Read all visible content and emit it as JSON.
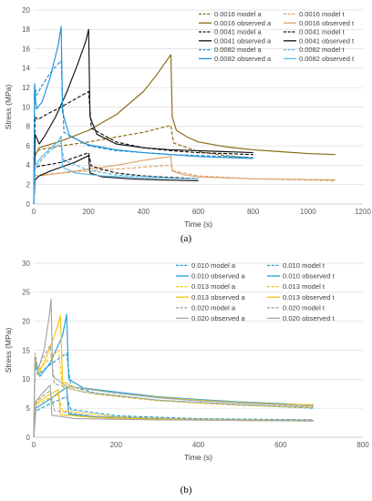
{
  "panels": [
    {
      "label": "(a)",
      "chart_data": {
        "type": "line",
        "xlabel": "Time (s)",
        "ylabel": "Stress (MPa)",
        "xlim": [
          0,
          1200
        ],
        "ylim": [
          0,
          20
        ],
        "xticks": [
          0,
          200,
          400,
          600,
          800,
          1000,
          1200
        ],
        "yticks": [
          0,
          2,
          4,
          6,
          8,
          10,
          12,
          14,
          16,
          18,
          20
        ],
        "grid": "horizontal",
        "legend_position": "top-right",
        "legend_columns": 2,
        "series": [
          {
            "name": "0.0016 model a",
            "color": "#8B6914",
            "dash": true,
            "x": [
              0,
              5,
              20,
              100,
              200,
              300,
              400,
              500,
              510,
              600,
              700,
              800
            ],
            "y": [
              0,
              5.4,
              5.6,
              6.0,
              6.4,
              6.9,
              7.4,
              8.1,
              6.3,
              5.4,
              5.0,
              4.7
            ]
          },
          {
            "name": "0.0016 model t",
            "color": "#D9A36B",
            "dash": true,
            "x": [
              0,
              5,
              20,
              100,
              200,
              300,
              400,
              500,
              510,
              600,
              800,
              1100
            ],
            "y": [
              0,
              2.9,
              3.0,
              3.2,
              3.4,
              3.6,
              3.8,
              4.0,
              3.4,
              2.9,
              2.6,
              2.4
            ]
          },
          {
            "name": "0.0016 observed a",
            "color": "#8B6914",
            "dash": false,
            "x": [
              0,
              5,
              20,
              100,
              200,
              300,
              400,
              450,
              500,
              505,
              520,
              560,
              600,
              700,
              800,
              900,
              1000,
              1100
            ],
            "y": [
              0,
              5.0,
              5.8,
              6.5,
              7.6,
              9.2,
              11.6,
              13.4,
              15.4,
              9.0,
              7.6,
              6.9,
              6.4,
              5.9,
              5.6,
              5.4,
              5.2,
              5.1
            ]
          },
          {
            "name": "0.0016 observed t",
            "color": "#D9A36B",
            "dash": false,
            "x": [
              0,
              5,
              20,
              100,
              200,
              300,
              400,
              500,
              505,
              550,
              600,
              800,
              1100
            ],
            "y": [
              0,
              2.6,
              2.9,
              3.2,
              3.6,
              4.0,
              4.5,
              4.9,
              3.4,
              3.0,
              2.8,
              2.6,
              2.5
            ]
          },
          {
            "name": "0.0041 model a",
            "color": "#111111",
            "dash": true,
            "x": [
              0,
              5,
              15,
              50,
              100,
              150,
              200,
              210,
              300,
              400,
              500,
              600,
              700,
              800
            ],
            "y": [
              0,
              9.0,
              8.7,
              9.3,
              10.0,
              10.8,
              11.6,
              7.8,
              6.4,
              5.8,
              5.5,
              5.3,
              5.2,
              5.1
            ]
          },
          {
            "name": "0.0041 model t",
            "color": "#111111",
            "dash": true,
            "x": [
              0,
              5,
              20,
              100,
              150,
              200,
              210,
              300,
              400,
              600
            ],
            "y": [
              0,
              3.8,
              3.9,
              4.3,
              4.8,
              5.3,
              3.9,
              3.2,
              2.9,
              2.6
            ]
          },
          {
            "name": "0.0041 observed a",
            "color": "#111111",
            "dash": false,
            "x": [
              0,
              5,
              20,
              40,
              80,
              120,
              160,
              190,
              200,
              205,
              230,
              300,
              400,
              500,
              600,
              700,
              800
            ],
            "y": [
              0,
              7.2,
              6.2,
              7.0,
              9.0,
              11.5,
              14.4,
              16.8,
              18.0,
              9.0,
              7.2,
              6.2,
              5.8,
              5.6,
              5.5,
              5.4,
              5.3
            ]
          },
          {
            "name": "0.0041 observed t",
            "color": "#111111",
            "dash": false,
            "x": [
              0,
              5,
              20,
              60,
              100,
              150,
              200,
              205,
              250,
              350,
              450,
              600
            ],
            "y": [
              0,
              2.5,
              2.9,
              3.4,
              3.8,
              4.3,
              5.0,
              3.2,
              2.8,
              2.6,
              2.5,
              2.4
            ]
          },
          {
            "name": "0.0082 model a",
            "color": "#1E90D6",
            "dash": true,
            "x": [
              0,
              3,
              10,
              30,
              60,
              100,
              110,
              200,
              300,
              500,
              800
            ],
            "y": [
              0,
              12.4,
              11.2,
              12.2,
              13.5,
              14.8,
              7.4,
              6.0,
              5.5,
              5.1,
              4.8
            ]
          },
          {
            "name": "0.0082 model t",
            "color": "#5AB8E6",
            "dash": true,
            "x": [
              0,
              5,
              30,
              60,
              100,
              110,
              200,
              300,
              500
            ],
            "y": [
              0,
              3.6,
              4.6,
              5.5,
              6.3,
              4.5,
              3.5,
              3.0,
              2.7
            ]
          },
          {
            "name": "0.0082 observed a",
            "color": "#1E90D6",
            "dash": false,
            "x": [
              0,
              3,
              10,
              30,
              60,
              90,
              100,
              105,
              130,
              200,
              300,
              400,
              500,
              600,
              700,
              800
            ],
            "y": [
              0,
              12.0,
              9.8,
              10.5,
              13.0,
              16.5,
              18.3,
              9.5,
              7.0,
              6.1,
              5.6,
              5.3,
              5.1,
              4.9,
              4.8,
              4.7
            ]
          },
          {
            "name": "0.0082 observed t",
            "color": "#5AB8E6",
            "dash": false,
            "x": [
              0,
              5,
              30,
              60,
              90,
              100,
              105,
              150,
              250,
              400,
              600
            ],
            "y": [
              0,
              4.0,
              4.9,
              5.7,
              6.5,
              7.0,
              3.8,
              3.2,
              2.9,
              2.7,
              2.6
            ]
          }
        ]
      }
    },
    {
      "label": "(b)",
      "chart_data": {
        "type": "line",
        "xlabel": "Time (s)",
        "ylabel": "Stress (MPa)",
        "xlim": [
          0,
          800
        ],
        "ylim": [
          0,
          30
        ],
        "xticks": [
          0,
          200,
          400,
          600,
          800
        ],
        "yticks": [
          0,
          5,
          10,
          15,
          20,
          25,
          30
        ],
        "grid": "horizontal",
        "legend_position": "top-right",
        "legend_columns": 2,
        "series": [
          {
            "name": "0.010 model a",
            "color": "#1E9FD8",
            "dash": true,
            "x": [
              0,
              3,
              10,
              40,
              80,
              90,
              150,
              300,
              500,
              680
            ],
            "y": [
              0,
              12.2,
              10.8,
              12.5,
              14.5,
              8.8,
              7.6,
              6.4,
              5.6,
              5.0
            ]
          },
          {
            "name": "0.010 model t",
            "color": "#1E9FD8",
            "dash": true,
            "x": [
              0,
              5,
              40,
              80,
              90,
              200,
              400,
              680
            ],
            "y": [
              0,
              4.5,
              5.8,
              7.0,
              4.8,
              3.7,
              3.2,
              3.0
            ]
          },
          {
            "name": "0.010 observed a",
            "color": "#1E9FD8",
            "dash": false,
            "x": [
              0,
              3,
              15,
              40,
              70,
              80,
              85,
              120,
              200,
              300,
              400,
              500,
              600,
              680
            ],
            "y": [
              0,
              12.8,
              10.5,
              12.8,
              17.5,
              21.2,
              10.0,
              8.5,
              7.8,
              7.0,
              6.5,
              6.1,
              5.8,
              5.5
            ]
          },
          {
            "name": "0.010 observed t",
            "color": "#1E9FD8",
            "dash": false,
            "x": [
              0,
              5,
              40,
              80,
              85,
              150,
              300,
              500,
              680
            ],
            "y": [
              0,
              5.0,
              6.6,
              8.6,
              4.0,
              3.5,
              3.2,
              3.0,
              2.9
            ]
          },
          {
            "name": "0.013 model a",
            "color": "#F2C40F",
            "dash": true,
            "x": [
              0,
              3,
              10,
              35,
              60,
              70,
              150,
              300,
              500,
              680
            ],
            "y": [
              0,
              13.2,
              11.5,
              13.3,
              15.0,
              8.6,
              7.4,
              6.3,
              5.5,
              5.1
            ]
          },
          {
            "name": "0.013 model t",
            "color": "#F2C40F",
            "dash": true,
            "x": [
              0,
              5,
              30,
              60,
              70,
              200,
              400,
              680
            ],
            "y": [
              0,
              5.5,
              6.5,
              7.4,
              4.6,
              3.5,
              3.1,
              2.9
            ]
          },
          {
            "name": "0.013 observed a",
            "color": "#F2C40F",
            "dash": false,
            "x": [
              0,
              3,
              12,
              30,
              55,
              65,
              70,
              100,
              200,
              300,
              400,
              500,
              600,
              680
            ],
            "y": [
              0,
              14.0,
              11.0,
              13.6,
              18.5,
              21.0,
              9.6,
              8.6,
              7.6,
              6.9,
              6.4,
              6.0,
              5.7,
              5.6
            ]
          },
          {
            "name": "0.013 observed t",
            "color": "#F2C40F",
            "dash": false,
            "x": [
              0,
              5,
              30,
              60,
              65,
              150,
              300,
              500,
              680
            ],
            "y": [
              0,
              5.8,
              7.0,
              8.2,
              3.9,
              3.4,
              3.1,
              2.9,
              2.8
            ]
          },
          {
            "name": "0.020 model a",
            "color": "#A6A6A6",
            "dash": true,
            "x": [
              0,
              3,
              10,
              25,
              40,
              50,
              120,
              300,
              500,
              680
            ],
            "y": [
              0,
              14.5,
              12.0,
              14.0,
              15.8,
              9.2,
              7.8,
              6.4,
              5.6,
              5.2
            ]
          },
          {
            "name": "0.020 model t",
            "color": "#A6A6A6",
            "dash": true,
            "x": [
              0,
              5,
              20,
              40,
              50,
              150,
              400,
              680
            ],
            "y": [
              0,
              6.0,
              7.0,
              8.0,
              4.6,
              3.6,
              3.1,
              2.9
            ]
          },
          {
            "name": "0.020 observed a",
            "color": "#A6A6A6",
            "dash": false,
            "x": [
              0,
              3,
              10,
              25,
              38,
              42,
              46,
              80,
              200,
              300,
              400,
              500,
              600,
              680
            ],
            "y": [
              0,
              13.5,
              11.5,
              15.0,
              21.0,
              23.8,
              10.5,
              8.8,
              7.6,
              6.8,
              6.3,
              5.9,
              5.6,
              5.4
            ]
          },
          {
            "name": "0.020 observed t",
            "color": "#A6A6A6",
            "dash": false,
            "x": [
              0,
              5,
              20,
              40,
              44,
              100,
              300,
              500,
              680
            ],
            "y": [
              0,
              6.2,
              7.5,
              9.0,
              3.8,
              3.2,
              3.0,
              2.9,
              2.8
            ]
          }
        ]
      }
    }
  ]
}
